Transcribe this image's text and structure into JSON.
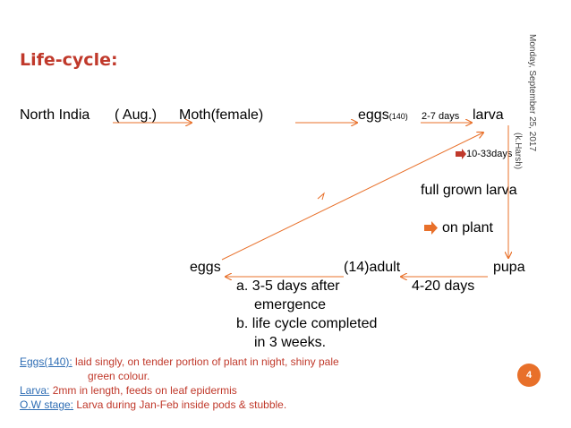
{
  "title": "Life-cycle:",
  "side_caption": {
    "date": "Monday, September 25, 2017",
    "author": "(k.Harsh)"
  },
  "flow": {
    "region": "North India",
    "month": "( Aug.)",
    "moth": "Moth(female)",
    "eggs_top": "eggs",
    "eggs_top_count": "(140)",
    "eggs_to_larva_days": "2-7 days",
    "larva": "larva",
    "larva_days": "10-33days",
    "full_grown_larva": "full grown larva",
    "on_plant": "on plant",
    "pupa": "pupa",
    "pupa_days": "4-20 days",
    "adult": "(14)adult",
    "eggs_bottom": "eggs",
    "notes": [
      "a. 3-5 days after",
      "emergence",
      "b. life cycle completed",
      "in 3 weeks."
    ]
  },
  "footnotes": [
    {
      "key": "Eggs(140):",
      "text": " laid singly, on tender portion of plant in night, shiny pale"
    },
    {
      "key": "",
      "text": "green colour."
    },
    {
      "key": "Larva:",
      "text": " 2mm in length, feeds on leaf epidermis"
    },
    {
      "key": "O.W stage:",
      "text": " Larva during Jan-Feb inside pods & stubble."
    }
  ],
  "page_number": "4",
  "colors": {
    "title": "#c0392b",
    "arrow": "#e8702a",
    "link": "#2e6db4",
    "badge": "#e8702a"
  }
}
